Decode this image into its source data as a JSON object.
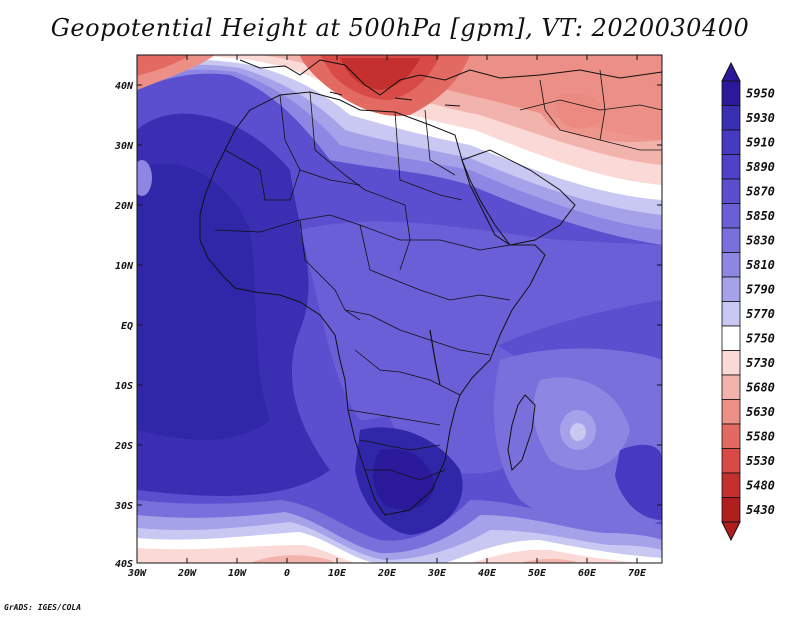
{
  "title": "Geopotential Height at 500hPa [gpm], VT: 2020030400",
  "credit": "GrADS: IGES/COLA",
  "map": {
    "region": "Africa",
    "variable": "Geopotential Height at 500hPa",
    "units": "gpm",
    "valid_time": "2020030400",
    "lon_labels": [
      "30W",
      "20W",
      "10W",
      "0",
      "10E",
      "20E",
      "30E",
      "40E",
      "50E",
      "60E",
      "70E"
    ],
    "lat_labels": [
      "40N",
      "30N",
      "20N",
      "10N",
      "EQ",
      "10S",
      "20S",
      "30S",
      "40S"
    ]
  },
  "colorbar": {
    "levels": [
      "5950",
      "5930",
      "5910",
      "5890",
      "5870",
      "5850",
      "5830",
      "5810",
      "5790",
      "5770",
      "5750",
      "5730",
      "5680",
      "5630",
      "5580",
      "5530",
      "5480",
      "5430"
    ],
    "colors": [
      "#2a1a9a",
      "#3a2fb3",
      "#4639c2",
      "#5042c8",
      "#5b4fcf",
      "#6a5fd6",
      "#7a70dc",
      "#8d86e2",
      "#a6a2ea",
      "#c9c8f2",
      "#ffffff",
      "#fbd9d6",
      "#f3b3ad",
      "#ec8f86",
      "#e36a62",
      "#d84a45",
      "#c4302d",
      "#b01e1e"
    ]
  }
}
